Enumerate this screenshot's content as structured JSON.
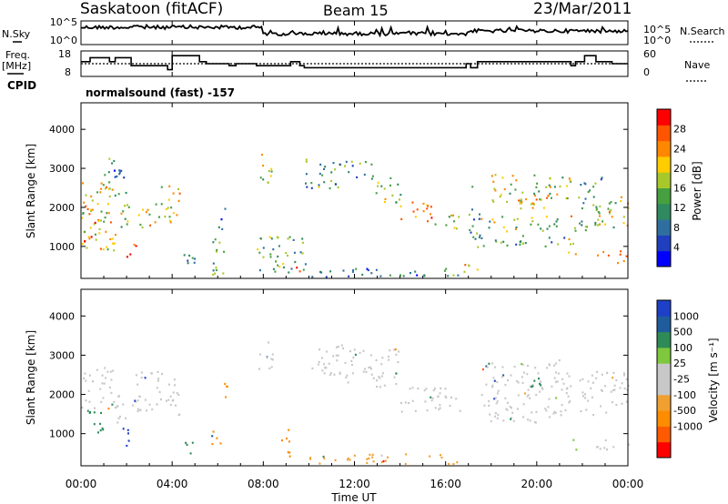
{
  "header": {
    "station": "Saskatoon (fitACF)",
    "beam": "Beam 15",
    "date": "23/Mar/2011"
  },
  "left_labels": {
    "nsky": "N.Sky",
    "freq_1": "Freq.",
    "freq_2": "[MHz]",
    "cpid": "CPID"
  },
  "right_labels": {
    "nsearch": "N.Search",
    "nave": "Nave"
  },
  "cpid_text": "normalsound (fast) -157",
  "colors": {
    "power": [
      "#0000ff",
      "#1f3fbf",
      "#2f6f9f",
      "#2f8a5f",
      "#46a040",
      "#a8c82a",
      "#ffcc00",
      "#ff8800",
      "#ff5500",
      "#ff0000"
    ],
    "velocity": [
      "#ff0000",
      "#ff5a00",
      "#ff8c00",
      "#f0a030",
      "#c8c8c8",
      "#c8c8c8",
      "#7dc83c",
      "#2e8b57",
      "#1e5c9c",
      "#1e40c8"
    ],
    "gray": "#c8c8c8"
  },
  "chart_data": [
    {
      "type": "line",
      "panel": "noise",
      "left_ticks": [
        "10^5",
        "10^0"
      ],
      "right_ticks": [
        "10^5",
        "10^0"
      ],
      "left_label": "N.Sky",
      "right_label": "N.Search",
      "x_range_hours": [
        0,
        24
      ]
    },
    {
      "type": "line",
      "panel": "frequency-nave",
      "left_ticks": [
        "18",
        "8"
      ],
      "right_ticks": [
        "60",
        "0"
      ],
      "left_label": "Freq. [MHz]",
      "right_label": "Nave",
      "freq_steps": [
        {
          "x0": 0,
          "x1": 0.4,
          "f": 14
        },
        {
          "x0": 0.4,
          "x1": 1.25,
          "f": 16
        },
        {
          "x0": 1.25,
          "x1": 1.5,
          "f": 14
        },
        {
          "x0": 1.5,
          "x1": 2.2,
          "f": 16
        },
        {
          "x0": 2.2,
          "x1": 2.6,
          "f": 12
        },
        {
          "x0": 2.6,
          "x1": 3.8,
          "f": 12
        },
        {
          "x0": 3.8,
          "x1": 4.0,
          "f": 10
        },
        {
          "x0": 4.0,
          "x1": 5.2,
          "f": 17
        },
        {
          "x0": 5.2,
          "x1": 5.5,
          "f": 14
        },
        {
          "x0": 5.5,
          "x1": 6.5,
          "f": 13
        },
        {
          "x0": 6.5,
          "x1": 6.8,
          "f": 12
        },
        {
          "x0": 6.8,
          "x1": 7.7,
          "f": 13
        },
        {
          "x0": 7.7,
          "x1": 9.2,
          "f": 12
        },
        {
          "x0": 9.2,
          "x1": 9.6,
          "f": 14
        },
        {
          "x0": 9.6,
          "x1": 9.8,
          "f": 12
        },
        {
          "x0": 9.8,
          "x1": 16.9,
          "f": 11
        },
        {
          "x0": 16.9,
          "x1": 17.1,
          "f": 13
        },
        {
          "x0": 17.1,
          "x1": 17.4,
          "f": 11
        },
        {
          "x0": 17.4,
          "x1": 20.8,
          "f": 14
        },
        {
          "x0": 20.8,
          "x1": 21.5,
          "f": 14
        },
        {
          "x0": 21.5,
          "x1": 21.7,
          "f": 12
        },
        {
          "x0": 21.7,
          "x1": 22.1,
          "f": 14
        },
        {
          "x0": 22.1,
          "x1": 22.6,
          "f": 17
        },
        {
          "x0": 22.6,
          "x1": 23.3,
          "f": 14
        },
        {
          "x0": 23.3,
          "x1": 24,
          "f": 13
        }
      ],
      "nave_level": 20
    },
    {
      "type": "heatmap",
      "panel": "power",
      "ylabel": "Slant Range [km]",
      "y_ticks": [
        1000,
        2000,
        3000,
        4000
      ],
      "y_range_km": [
        180,
        4680
      ],
      "colorbar_label": "Power [dB]",
      "colorbar_ticks": [
        "28",
        "24",
        "20",
        "16",
        "12",
        "8",
        "4"
      ],
      "colorbar_range": [
        0,
        32
      ],
      "regions": [
        {
          "t0": 0.0,
          "t1": 1.6,
          "r0": 900,
          "r1": 2700,
          "level": 0.62
        },
        {
          "t0": 0.3,
          "t1": 0.8,
          "r0": 1200,
          "r1": 2200,
          "level": 0.8
        },
        {
          "t0": 0.0,
          "t1": 0.3,
          "r0": 1000,
          "r1": 1250,
          "level": 0.9
        },
        {
          "t0": 1.6,
          "t1": 2.3,
          "r0": 1400,
          "r1": 2100,
          "level": 0.6
        },
        {
          "t0": 1.9,
          "t1": 2.4,
          "r0": 700,
          "r1": 1100,
          "level": 0.85
        },
        {
          "t0": 2.3,
          "t1": 3.2,
          "r0": 1500,
          "r1": 2000,
          "level": 0.7
        },
        {
          "t0": 3.2,
          "t1": 4.3,
          "r0": 1600,
          "r1": 2600,
          "level": 0.6
        },
        {
          "t0": 1.0,
          "t1": 2.0,
          "r0": 2300,
          "r1": 3300,
          "level": 0.3
        },
        {
          "t0": 4.2,
          "t1": 5.0,
          "r0": 450,
          "r1": 900,
          "level": 0.35
        },
        {
          "t0": 5.6,
          "t1": 6.3,
          "r0": 300,
          "r1": 1300,
          "level": 0.4
        },
        {
          "t0": 6.0,
          "t1": 6.3,
          "r0": 1400,
          "r1": 2200,
          "level": 0.3
        },
        {
          "t0": 7.7,
          "t1": 8.4,
          "r0": 2600,
          "r1": 3400,
          "level": 0.55
        },
        {
          "t0": 7.7,
          "t1": 9.9,
          "r0": 350,
          "r1": 1300,
          "level": 0.45
        },
        {
          "t0": 9.0,
          "t1": 9.6,
          "r0": 350,
          "r1": 550,
          "level": 0.9
        },
        {
          "t0": 9.8,
          "t1": 11.5,
          "r0": 2500,
          "r1": 3300,
          "level": 0.4
        },
        {
          "t0": 11.5,
          "t1": 12.8,
          "r0": 2700,
          "r1": 3200,
          "level": 0.35
        },
        {
          "t0": 12.8,
          "t1": 14.0,
          "r0": 2100,
          "r1": 2800,
          "level": 0.55
        },
        {
          "t0": 14.0,
          "t1": 15.5,
          "r0": 1650,
          "r1": 2200,
          "level": 0.75
        },
        {
          "t0": 15.5,
          "t1": 16.6,
          "r0": 1450,
          "r1": 1900,
          "level": 0.6
        },
        {
          "t0": 10.0,
          "t1": 16.6,
          "r0": 200,
          "r1": 450,
          "level": 0.3
        },
        {
          "t0": 16.7,
          "t1": 17.6,
          "r0": 300,
          "r1": 600,
          "level": 0.7
        },
        {
          "t0": 17.0,
          "t1": 17.5,
          "r0": 1200,
          "r1": 2600,
          "level": 0.35
        },
        {
          "t0": 17.5,
          "t1": 21.0,
          "r0": 1400,
          "r1": 1800,
          "level": 0.5
        },
        {
          "t0": 18.0,
          "t1": 21.5,
          "r0": 2100,
          "r1": 2900,
          "level": 0.55
        },
        {
          "t0": 19.0,
          "t1": 20.5,
          "r0": 1900,
          "r1": 2300,
          "level": 0.7
        },
        {
          "t0": 17.2,
          "t1": 21.5,
          "r0": 1000,
          "r1": 1300,
          "level": 0.35
        },
        {
          "t0": 21.3,
          "t1": 21.7,
          "r0": 800,
          "r1": 1800,
          "level": 0.7
        },
        {
          "t0": 21.8,
          "t1": 23.0,
          "r0": 1400,
          "r1": 2800,
          "level": 0.4
        },
        {
          "t0": 22.6,
          "t1": 24.0,
          "r0": 1500,
          "r1": 2300,
          "level": 0.6
        },
        {
          "t0": 22.5,
          "t1": 24.0,
          "r0": 600,
          "r1": 900,
          "level": 0.75
        }
      ]
    },
    {
      "type": "heatmap",
      "panel": "velocity",
      "ylabel": "Slant Range [km]",
      "xlabel": "Time UT",
      "x_ticks": [
        "00:00",
        "04:00",
        "08:00",
        "12:00",
        "16:00",
        "20:00",
        "00:00"
      ],
      "y_ticks": [
        1000,
        2000,
        3000,
        4000
      ],
      "y_range_km": [
        180,
        4680
      ],
      "colorbar_label": "Velocity [m s⁻¹]",
      "colorbar_ticks": [
        "1000",
        "500",
        "100",
        "25",
        "-25",
        "-100",
        "-500",
        "-1000"
      ],
      "regions": [
        {
          "t0": 0.0,
          "t1": 1.5,
          "r0": 1600,
          "r1": 2700,
          "vel": "gray"
        },
        {
          "t0": 0.2,
          "t1": 1.0,
          "r0": 900,
          "r1": 1600,
          "vel": "green"
        },
        {
          "t0": 1.8,
          "t1": 2.3,
          "r0": 700,
          "r1": 1200,
          "vel": "blue"
        },
        {
          "t0": 1.5,
          "t1": 2.6,
          "r0": 1300,
          "r1": 2000,
          "vel": "gray"
        },
        {
          "t0": 2.3,
          "t1": 4.3,
          "r0": 1500,
          "r1": 2600,
          "vel": "gray"
        },
        {
          "t0": 4.2,
          "t1": 4.9,
          "r0": 500,
          "r1": 800,
          "vel": "green"
        },
        {
          "t0": 5.6,
          "t1": 6.1,
          "r0": 600,
          "r1": 1200,
          "vel": "orange"
        },
        {
          "t0": 6.0,
          "t1": 6.4,
          "r0": 1800,
          "r1": 2300,
          "vel": "orange"
        },
        {
          "t0": 7.7,
          "t1": 8.4,
          "r0": 2600,
          "r1": 3400,
          "vel": "gray"
        },
        {
          "t0": 8.6,
          "t1": 9.2,
          "r0": 800,
          "r1": 1200,
          "vel": "orange"
        },
        {
          "t0": 9.0,
          "t1": 9.6,
          "r0": 350,
          "r1": 650,
          "vel": "orange"
        },
        {
          "t0": 9.8,
          "t1": 11.5,
          "r0": 2500,
          "r1": 3300,
          "vel": "gray"
        },
        {
          "t0": 11.5,
          "t1": 14.0,
          "r0": 2200,
          "r1": 3200,
          "vel": "gray"
        },
        {
          "t0": 14.0,
          "t1": 16.6,
          "r0": 1500,
          "r1": 2200,
          "vel": "gray"
        },
        {
          "t0": 10.0,
          "t1": 16.6,
          "r0": 250,
          "r1": 500,
          "vel": "yellow"
        },
        {
          "t0": 17.5,
          "t1": 21.5,
          "r0": 1300,
          "r1": 2900,
          "vel": "gray"
        },
        {
          "t0": 19.5,
          "t1": 20.2,
          "r0": 2200,
          "r1": 2700,
          "vel": "green"
        },
        {
          "t0": 21.8,
          "t1": 24.0,
          "r0": 1500,
          "r1": 2600,
          "vel": "gray"
        },
        {
          "t0": 22.6,
          "t1": 24.0,
          "r0": 600,
          "r1": 900,
          "vel": "gray"
        },
        {
          "t0": 21.4,
          "t1": 21.7,
          "r0": 600,
          "r1": 900,
          "vel": "lightgreen"
        }
      ]
    }
  ]
}
